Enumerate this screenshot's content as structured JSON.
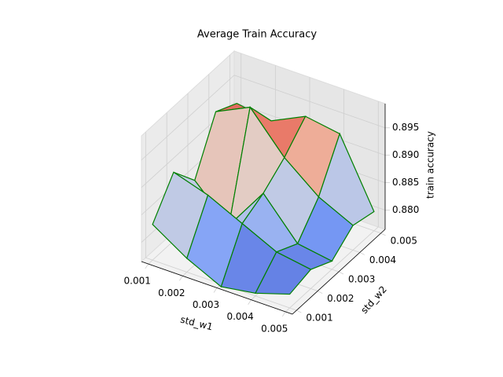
{
  "chart_data": {
    "type": "surface3d",
    "title": "Average Train Accuracy",
    "xlabel": "std_w1",
    "ylabel": "std_w2",
    "zlabel": "train accuracy",
    "x": [
      0.001,
      0.002,
      0.003,
      0.004,
      0.005
    ],
    "y": [
      0.001,
      0.002,
      0.003,
      0.004,
      0.005
    ],
    "z": [
      [
        0.883,
        0.889,
        0.884,
        0.893,
        0.891
      ],
      [
        0.879,
        0.887,
        0.878,
        0.896,
        0.89
      ],
      [
        0.876,
        0.884,
        0.886,
        0.889,
        0.893
      ],
      [
        0.877,
        0.881,
        0.879,
        0.884,
        0.892
      ],
      [
        0.879,
        0.88,
        0.878,
        0.881,
        0.88
      ]
    ],
    "xlim": [
      0.0008,
      0.0052
    ],
    "ylim": [
      0.0008,
      0.0052
    ],
    "zlim": [
      0.8765,
      0.8994
    ],
    "xticks": [
      0.001,
      0.002,
      0.003,
      0.004,
      0.005
    ],
    "yticks": [
      0.001,
      0.002,
      0.003,
      0.004,
      0.005
    ],
    "zticks": [
      {
        "value": 0.88,
        "label": "0.880"
      },
      0.885,
      {
        "value": 0.89,
        "label": "0.890"
      },
      0.895
    ],
    "colormap": "coolwarm",
    "edge_color": "green",
    "grid": true
  }
}
